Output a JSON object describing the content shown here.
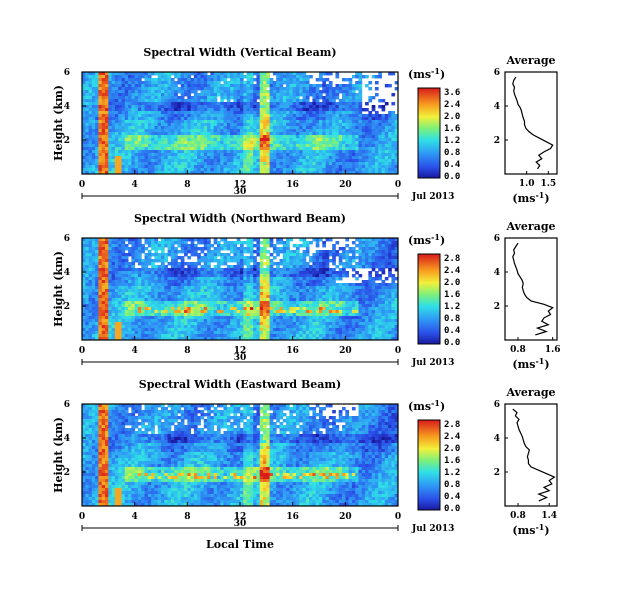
{
  "figure": {
    "xlabel": "Local Time",
    "date_label": "Jul 2013",
    "ylabel": "Height (km)",
    "avg_title": "Average",
    "unit_base": "(ms",
    "unit_exp": "-1",
    "unit_close": ")"
  },
  "chart_data": [
    {
      "type": "heatmap",
      "title": "Spectral Width (Vertical Beam)",
      "ylabel": "Height (km)",
      "x_ticks": [
        "0",
        "4",
        "8",
        "12",
        "16",
        "20",
        "0"
      ],
      "x_range_hours": [
        0,
        24
      ],
      "date_marker": "30",
      "date_label": "Jul 2013",
      "y_ticks": [
        "6",
        "4",
        "2"
      ],
      "y_range_km": [
        0,
        6
      ],
      "colorbar_unit": "(ms-1)",
      "colorbar_ticks": [
        "3.6",
        "2.4",
        "2.0",
        "1.6",
        "1.2",
        "0.8",
        "0.4",
        "0.0"
      ]
    },
    {
      "type": "heatmap",
      "title": "Spectral Width (Northward Beam)",
      "ylabel": "Height (km)",
      "x_ticks": [
        "0",
        "4",
        "8",
        "12",
        "16",
        "20",
        "0"
      ],
      "x_range_hours": [
        0,
        24
      ],
      "date_marker": "30",
      "date_label": "Jul 2013",
      "y_ticks": [
        "6",
        "4",
        "2"
      ],
      "y_range_km": [
        0,
        6
      ],
      "colorbar_unit": "(ms-1)",
      "colorbar_ticks": [
        "2.8",
        "2.4",
        "2.0",
        "1.6",
        "1.2",
        "0.8",
        "0.4",
        "0.0"
      ]
    },
    {
      "type": "heatmap",
      "title": "Spectral Width (Eastward Beam)",
      "ylabel": "Height (km)",
      "xlabel": "Local Time",
      "x_ticks": [
        "0",
        "4",
        "8",
        "12",
        "16",
        "20",
        "0"
      ],
      "x_range_hours": [
        0,
        24
      ],
      "date_marker": "30",
      "date_label": "Jul 2013",
      "y_ticks": [
        "6",
        "4",
        "2"
      ],
      "y_range_km": [
        0,
        6
      ],
      "colorbar_unit": "(ms-1)",
      "colorbar_ticks": [
        "2.8",
        "2.4",
        "2.0",
        "1.6",
        "1.2",
        "0.8",
        "0.4",
        "0.0"
      ]
    },
    {
      "type": "line",
      "title": "Average",
      "xlabel": "(ms-1)",
      "x_ticks": [
        "1.0",
        "1.5"
      ],
      "xlim": [
        0.5,
        1.7
      ],
      "y_ticks": [
        "6",
        "4",
        "2"
      ],
      "ylim": [
        0,
        6
      ],
      "profile": {
        "height_km": [
          0.3,
          0.5,
          0.7,
          0.9,
          1.1,
          1.3,
          1.5,
          1.7,
          1.9,
          2.1,
          2.3,
          2.5,
          2.7,
          2.9,
          3.1,
          3.3,
          3.5,
          3.7,
          3.9,
          4.1,
          4.3,
          4.5,
          4.7,
          4.9,
          5.1,
          5.3,
          5.5,
          5.7
        ],
        "width_ms": [
          1.25,
          1.3,
          1.22,
          1.35,
          1.28,
          1.4,
          1.55,
          1.6,
          1.45,
          1.3,
          1.15,
          1.05,
          0.98,
          0.95,
          0.95,
          0.92,
          0.9,
          0.88,
          0.85,
          0.8,
          0.78,
          0.75,
          0.72,
          0.7,
          0.72,
          0.68,
          0.7,
          0.75
        ]
      }
    },
    {
      "type": "line",
      "title": "Average",
      "xlabel": "(ms-1)",
      "x_ticks": [
        "0.8",
        "1.6"
      ],
      "xlim": [
        0.5,
        1.7
      ],
      "y_ticks": [
        "6",
        "4",
        "2"
      ],
      "ylim": [
        0,
        6
      ],
      "profile": {
        "height_km": [
          0.3,
          0.5,
          0.7,
          0.9,
          1.1,
          1.3,
          1.5,
          1.7,
          1.9,
          2.1,
          2.3,
          2.5,
          2.7,
          2.9,
          3.1,
          3.3,
          3.5,
          3.7,
          3.9,
          4.1,
          4.3,
          4.5,
          4.7,
          4.9,
          5.1,
          5.3,
          5.5,
          5.7
        ],
        "width_ms": [
          1.2,
          1.45,
          1.25,
          1.5,
          1.35,
          1.4,
          1.55,
          1.5,
          1.6,
          1.4,
          1.1,
          1.0,
          0.95,
          0.92,
          0.9,
          0.92,
          0.9,
          0.85,
          0.8,
          0.78,
          0.75,
          0.72,
          0.7,
          0.68,
          0.72,
          0.7,
          0.75,
          0.8
        ]
      }
    },
    {
      "type": "line",
      "title": "Average",
      "xlabel": "(ms-1)",
      "x_ticks": [
        "0.8",
        "1.4"
      ],
      "xlim": [
        0.55,
        1.55
      ],
      "y_ticks": [
        "6",
        "4",
        "2"
      ],
      "ylim": [
        0,
        6
      ],
      "profile": {
        "height_km": [
          0.3,
          0.5,
          0.7,
          0.9,
          1.1,
          1.3,
          1.5,
          1.7,
          1.9,
          2.1,
          2.3,
          2.5,
          2.7,
          2.9,
          3.1,
          3.3,
          3.5,
          3.7,
          3.9,
          4.1,
          4.3,
          4.5,
          4.7,
          4.9,
          5.1,
          5.3,
          5.5,
          5.7
        ],
        "width_ms": [
          1.2,
          1.35,
          1.2,
          1.4,
          1.3,
          1.45,
          1.4,
          1.5,
          1.35,
          1.2,
          1.05,
          1.0,
          1.0,
          0.98,
          1.0,
          1.02,
          0.95,
          0.92,
          0.9,
          0.88,
          0.85,
          0.82,
          0.8,
          0.78,
          0.82,
          0.75,
          0.78,
          0.7
        ]
      }
    }
  ]
}
